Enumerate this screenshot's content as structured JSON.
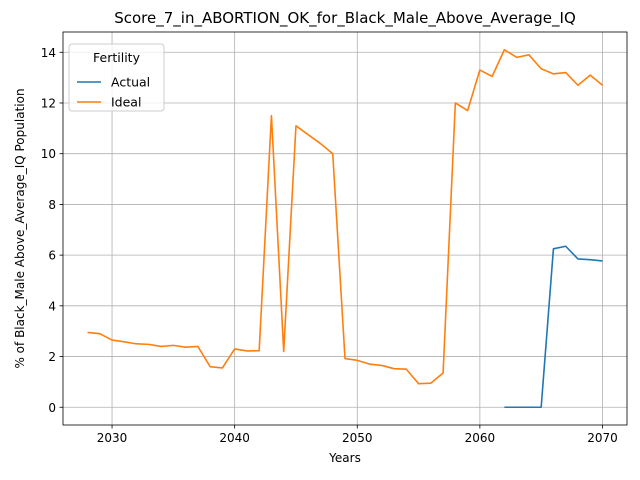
{
  "chart_data": {
    "type": "line",
    "title": "Score_7_in_ABORTION_OK_for_Black_Male_Above_Average_IQ",
    "xlabel": "Years",
    "ylabel": "% of Black_Male Above_Average_IQ Population",
    "xlim": [
      2026,
      2072
    ],
    "ylim": [
      -0.7,
      14.8
    ],
    "xticks": [
      2030,
      2040,
      2050,
      2060,
      2070
    ],
    "yticks": [
      0,
      2,
      4,
      6,
      8,
      10,
      12,
      14
    ],
    "grid": true,
    "legend": {
      "title": "Fertility",
      "placement": "top-left"
    },
    "series": [
      {
        "name": "Actual",
        "color": "#1f77b4",
        "x": [
          2062,
          2063,
          2064,
          2065,
          2066,
          2067,
          2068,
          2069,
          2070
        ],
        "values": [
          0.0,
          0.0,
          0.0,
          0.0,
          6.25,
          6.35,
          5.85,
          5.82,
          5.77
        ]
      },
      {
        "name": "Ideal",
        "color": "#ff7f0e",
        "x": [
          2028,
          2029,
          2030,
          2031,
          2032,
          2033,
          2034,
          2035,
          2036,
          2037,
          2038,
          2039,
          2040,
          2041,
          2042,
          2043,
          2044,
          2045,
          2046,
          2047,
          2048,
          2049,
          2050,
          2051,
          2052,
          2053,
          2054,
          2055,
          2056,
          2057,
          2058,
          2059,
          2060,
          2061,
          2062,
          2063,
          2064,
          2065,
          2066,
          2067,
          2068,
          2069,
          2070
        ],
        "values": [
          2.95,
          2.9,
          2.65,
          2.58,
          2.5,
          2.48,
          2.4,
          2.44,
          2.37,
          2.4,
          1.6,
          1.55,
          2.3,
          2.22,
          2.23,
          11.5,
          2.2,
          11.1,
          10.75,
          10.4,
          10.0,
          1.92,
          1.85,
          1.7,
          1.65,
          1.52,
          1.5,
          0.93,
          0.95,
          1.35,
          12.0,
          11.7,
          13.3,
          13.05,
          14.1,
          13.8,
          13.9,
          13.35,
          13.15,
          13.2,
          12.7,
          13.1,
          12.7
        ]
      }
    ]
  }
}
